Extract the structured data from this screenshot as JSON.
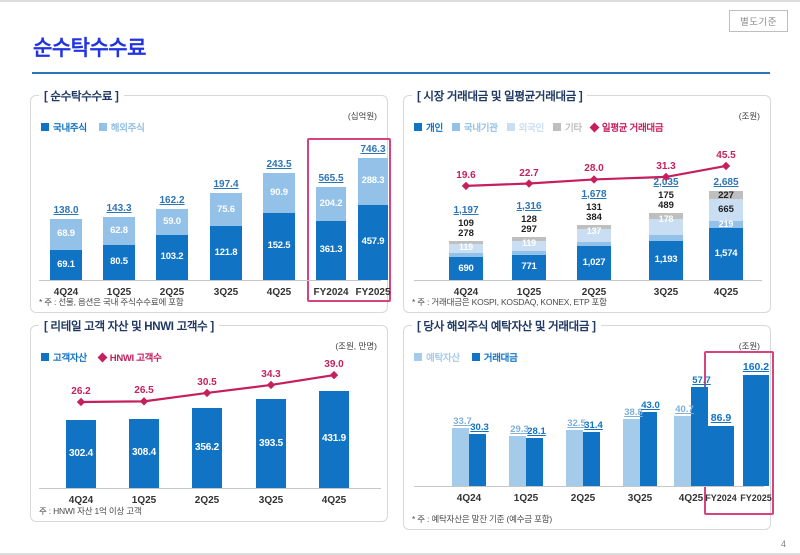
{
  "header": {
    "title": "순수탁수수료",
    "badge": "별도기준",
    "page_number": "4"
  },
  "palette": {
    "title_blue": "#2134E0",
    "rule_blue": "#2E75B6",
    "dark_blue": "#1173C4",
    "mid_blue": "#93C1E7",
    "pale_blue": "#C9DEF2",
    "soft_blue": "#A5CBEB",
    "gray": "#BFBFBF",
    "line_pink": "#C51F5E",
    "highlight_pink": "#D5447F",
    "total_blue": "#2E75B6"
  },
  "charts": [
    {
      "title": "[ 순수탁수수료 ]",
      "unit": "(십억원)",
      "footnote": "* 주 : 선물, 옵션은 국내 주식수수료에 포함",
      "legend": [
        {
          "label": "국내주식",
          "color": "#1173C4",
          "marker": "square"
        },
        {
          "label": "해외주식",
          "color": "#93C1E7",
          "marker": "square"
        }
      ],
      "chart_data": {
        "type": "bar",
        "stacked": true,
        "categories": [
          "4Q24",
          "1Q25",
          "2Q25",
          "3Q25",
          "4Q25",
          "FY2024",
          "FY2025"
        ],
        "series": [
          {
            "name": "국내주식",
            "color": "#1173C4",
            "values": [
              "69.1",
              "80.5",
              "103.2",
              "121.8",
              "152.5",
              "361.3",
              "457.9"
            ]
          },
          {
            "name": "해외주식",
            "color": "#93C1E7",
            "values": [
              "68.9",
              "62.8",
              "59.0",
              "75.6",
              "90.9",
              "204.2",
              "288.3"
            ]
          }
        ],
        "totals": [
          "138.0",
          "143.3",
          "162.2",
          "197.4",
          "243.5",
          "565.5",
          "746.3"
        ],
        "highlight_categories": [
          "FY2024",
          "FY2025"
        ],
        "unit_label": "십억원",
        "grid": false,
        "legend_position": "top-left"
      }
    },
    {
      "title": "[ 시장 거래대금 및 일평균거래대금 ]",
      "unit": "(조원)",
      "footnote": "* 주 : 거래대금은 KOSPI, KOSDAQ, KONEX, ETP 포함",
      "legend": [
        {
          "label": "개인",
          "color": "#1173C4",
          "marker": "square"
        },
        {
          "label": "국내기관",
          "color": "#93C1E7",
          "marker": "square"
        },
        {
          "label": "외국인",
          "color": "#C9DEF2",
          "marker": "square"
        },
        {
          "label": "기타",
          "color": "#BFBFBF",
          "marker": "square"
        },
        {
          "label": "일평균 거래대금",
          "color": "#C51F5E",
          "marker": "diamond"
        }
      ],
      "chart_data": {
        "type": "bar+line",
        "stacked": true,
        "categories": [
          "4Q24",
          "1Q25",
          "2Q25",
          "3Q25",
          "4Q25"
        ],
        "series": [
          {
            "name": "개인",
            "color": "#1173C4",
            "values": [
              "690",
              "771",
              "1,027",
              "1,193",
              "1,574"
            ]
          },
          {
            "name": "국내기관",
            "color": "#93C1E7",
            "values": [
              "119",
              "119",
              "137",
              "178",
              "219"
            ]
          },
          {
            "name": "외국인",
            "color": "#C9DEF2",
            "values": [
              "278",
              "297",
              "384",
              "489",
              "665"
            ]
          },
          {
            "name": "기타",
            "color": "#BFBFBF",
            "values": [
              "109",
              "128",
              "131",
              "175",
              "227"
            ]
          }
        ],
        "totals": [
          "1,197",
          "1,316",
          "1,678",
          "2,035",
          "2,685"
        ],
        "line": {
          "name": "일평균 거래대금",
          "color": "#C51F5E",
          "values": [
            "19.6",
            "22.7",
            "28.0",
            "31.3",
            "45.5"
          ]
        },
        "unit_label": "조원",
        "grid": false,
        "legend_position": "top-left"
      }
    },
    {
      "title": "[ 리테일 고객 자산 및 HNWI 고객수 ]",
      "unit": "(조원, 만명)",
      "footnote": "주 : HNWI 자산 1억 이상 고객",
      "legend": [
        {
          "label": "고객자산",
          "color": "#1173C4",
          "marker": "square"
        },
        {
          "label": "HNWI 고객수",
          "color": "#C51F5E",
          "marker": "diamond"
        }
      ],
      "chart_data": {
        "type": "bar+line",
        "categories": [
          "4Q24",
          "1Q25",
          "2Q25",
          "3Q25",
          "4Q25"
        ],
        "series": [
          {
            "name": "고객자산",
            "color": "#1173C4",
            "values": [
              "302.4",
              "308.4",
              "356.2",
              "393.5",
              "431.9"
            ]
          }
        ],
        "line": {
          "name": "HNWI 고객수",
          "color": "#C51F5E",
          "values": [
            "26.2",
            "26.5",
            "30.5",
            "34.3",
            "39.0"
          ]
        },
        "unit_label": "조원, 만명",
        "grid": false,
        "legend_position": "top-left"
      }
    },
    {
      "title": "[ 당사 해외주식 예탁자산 및 거래대금 ]",
      "unit": "(조원)",
      "footnote": "* 주 : 예탁자산은 말잔 기준 (예수금 포함)",
      "legend": [
        {
          "label": "예탁자산",
          "color": "#A5CBEB",
          "marker": "square"
        },
        {
          "label": "거래대금",
          "color": "#1173C4",
          "marker": "square"
        }
      ],
      "chart_data": {
        "type": "bar",
        "grouped": true,
        "categories": [
          "4Q24",
          "1Q25",
          "2Q25",
          "3Q25",
          "4Q25",
          "FY2024",
          "FY2025"
        ],
        "series": [
          {
            "name": "예탁자산",
            "color": "#A5CBEB",
            "values": [
              "33.7",
              "29.3",
              "32.5",
              "38.8",
              "40.7",
              null,
              null
            ]
          },
          {
            "name": "거래대금",
            "color": "#1173C4",
            "values": [
              "30.3",
              "28.1",
              "31.4",
              "43.0",
              "57.7",
              "86.9",
              "160.2"
            ]
          }
        ],
        "highlight_categories": [
          "FY2024",
          "FY2025"
        ],
        "unit_label": "조원",
        "grid": false,
        "legend_position": "top-left"
      }
    }
  ]
}
